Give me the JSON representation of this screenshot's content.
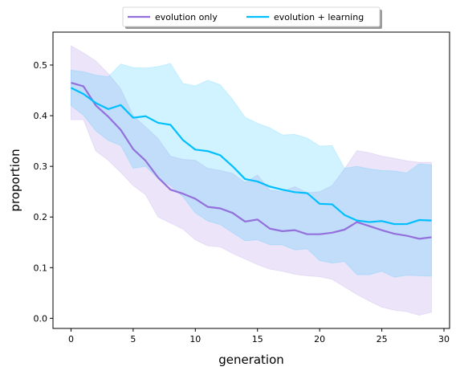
{
  "chart_data": {
    "type": "line",
    "title": "",
    "xlabel": "generation",
    "ylabel": "proportion",
    "xlim": [
      -1.45,
      30.45
    ],
    "ylim": [
      -0.02,
      0.565
    ],
    "xticks": [
      0,
      5,
      10,
      15,
      20,
      25,
      30
    ],
    "yticks": [
      0.0,
      0.1,
      0.2,
      0.3,
      0.4,
      0.5
    ],
    "grid": false,
    "legend_position": "top-center-outside",
    "x": [
      0,
      1,
      2,
      3,
      4,
      5,
      6,
      7,
      8,
      9,
      10,
      11,
      12,
      13,
      14,
      15,
      16,
      17,
      18,
      19,
      20,
      21,
      22,
      23,
      24,
      25,
      26,
      27,
      28,
      29
    ],
    "series": [
      {
        "name": "evolution only",
        "color": "#9370db",
        "mean": [
          0.465,
          0.458,
          0.42,
          0.398,
          0.372,
          0.334,
          0.311,
          0.278,
          0.254,
          0.246,
          0.236,
          0.22,
          0.217,
          0.208,
          0.191,
          0.195,
          0.177,
          0.172,
          0.174,
          0.166,
          0.166,
          0.169,
          0.175,
          0.19,
          0.182,
          0.174,
          0.167,
          0.163,
          0.157,
          0.16
        ],
        "upper": [
          0.538,
          0.524,
          0.508,
          0.483,
          0.453,
          0.4,
          0.378,
          0.355,
          0.32,
          0.314,
          0.312,
          0.296,
          0.292,
          0.286,
          0.268,
          0.283,
          0.253,
          0.25,
          0.26,
          0.248,
          0.25,
          0.262,
          0.295,
          0.331,
          0.327,
          0.32,
          0.316,
          0.311,
          0.308,
          0.308
        ],
        "lower": [
          0.392,
          0.392,
          0.33,
          0.312,
          0.288,
          0.262,
          0.244,
          0.2,
          0.188,
          0.176,
          0.155,
          0.143,
          0.141,
          0.128,
          0.117,
          0.106,
          0.097,
          0.093,
          0.087,
          0.084,
          0.082,
          0.077,
          0.062,
          0.047,
          0.034,
          0.022,
          0.016,
          0.013,
          0.006,
          0.012
        ]
      },
      {
        "name": "evolution + learning",
        "color": "#00bfff",
        "mean": [
          0.455,
          0.443,
          0.425,
          0.413,
          0.421,
          0.396,
          0.399,
          0.386,
          0.382,
          0.352,
          0.333,
          0.33,
          0.322,
          0.3,
          0.275,
          0.27,
          0.26,
          0.254,
          0.249,
          0.247,
          0.226,
          0.225,
          0.204,
          0.193,
          0.19,
          0.192,
          0.186,
          0.186,
          0.194,
          0.193
        ],
        "upper": [
          0.49,
          0.487,
          0.48,
          0.477,
          0.502,
          0.495,
          0.494,
          0.497,
          0.503,
          0.464,
          0.459,
          0.47,
          0.461,
          0.432,
          0.397,
          0.385,
          0.376,
          0.362,
          0.363,
          0.356,
          0.34,
          0.341,
          0.296,
          0.3,
          0.295,
          0.292,
          0.291,
          0.287,
          0.305,
          0.303
        ],
        "lower": [
          0.42,
          0.401,
          0.37,
          0.351,
          0.341,
          0.296,
          0.3,
          0.276,
          0.262,
          0.24,
          0.208,
          0.192,
          0.185,
          0.169,
          0.153,
          0.155,
          0.145,
          0.145,
          0.135,
          0.137,
          0.114,
          0.109,
          0.112,
          0.086,
          0.086,
          0.093,
          0.081,
          0.085,
          0.084,
          0.083
        ]
      }
    ]
  }
}
